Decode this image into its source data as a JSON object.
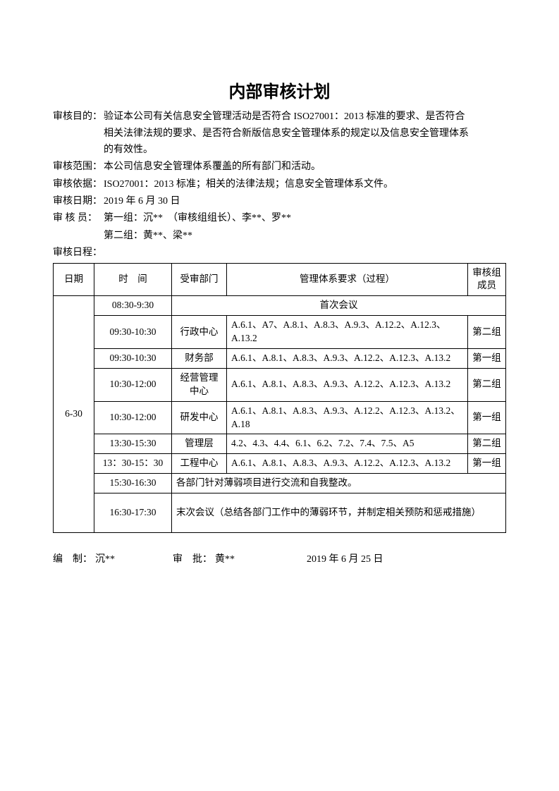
{
  "title": "内部审核计划",
  "labels": {
    "purpose": "审核目的：",
    "scope": "审核范围：",
    "basis": "审核依据：",
    "date": "审核日期：",
    "auditors": "审 核 员：",
    "schedule": "审核日程：",
    "hdr_date": "日期",
    "hdr_time": "时　间",
    "hdr_dept": "受审部门",
    "hdr_req": "管理体系要求（过程）",
    "hdr_grp": "审核组成员",
    "foot_prep": "编　制：",
    "foot_appr": "审　批："
  },
  "info": {
    "purpose_l1": "验证本公司有关信息安全管理活动是否符合 ISO27001：2013 标准的要求、是否符合",
    "purpose_l2": "相关法律法规的要求、是否符合新版信息安全管理体系的规定以及信息安全管理体系",
    "purpose_l3": "的有效性。",
    "scope": "本公司信息安全管理体系覆盖的所有部门和活动。",
    "basis": "ISO27001：2013 标准；相关的法律法规；信息安全管理体系文件。",
    "date": "2019 年 6 月 30 日",
    "auditors_l1": "第一组：沉**　（审核组组长）、李**、罗**",
    "auditors_l2": "第二组：黄**、梁**"
  },
  "table": {
    "date": "6-30",
    "rows": [
      {
        "time": "08:30-9:30",
        "dept": "",
        "req": "首次会议",
        "grp": "",
        "colspan": 3,
        "align": "center"
      },
      {
        "time": "09:30-10:30",
        "dept": "行政中心",
        "req": "A.6.1、A7、A.8.1、A.8.3、A.9.3、A.12.2、A.12.3、A.13.2",
        "grp": "第二组"
      },
      {
        "time": "09:30-10:30",
        "dept": "财务部",
        "req": "A.6.1、A.8.1、A.8.3、A.9.3、A.12.2、A.12.3、A.13.2",
        "grp": "第一组"
      },
      {
        "time": "10:30-12:00",
        "dept": "经营管理中心",
        "req": "A.6.1、A.8.1、A.8.3、A.9.3、A.12.2、A.12.3、A.13.2",
        "grp": "第二组"
      },
      {
        "time": "10:30-12:00",
        "dept": "研发中心",
        "req": "A.6.1、A.8.1、A.8.3、A.9.3、A.12.2、A.12.3、A.13.2、A.18",
        "grp": "第一组"
      },
      {
        "time": "13:30-15:30",
        "dept": "管理层",
        "req": "4.2、4.3、4.4、6.1、6.2、7.2、7.4、7.5、A5",
        "grp": "第二组"
      },
      {
        "time": "13：30-15：30",
        "dept": "工程中心",
        "req": "A.6.1、A.8.1、A.8.3、A.9.3、A.12.2、A.12.3、A.13.2",
        "grp": "第一组"
      },
      {
        "time": "15:30-16:30",
        "dept": "",
        "req": "各部门针对薄弱项目进行交流和自我整改。",
        "grp": "",
        "colspan": 3,
        "align": "left"
      },
      {
        "time": "16:30-17:30",
        "dept": "",
        "req": "末次会议（总结各部门工作中的薄弱环节，并制定相关预防和惩戒措施）",
        "grp": "",
        "colspan": 3,
        "align": "left",
        "pad": "18px 6px"
      }
    ]
  },
  "footer": {
    "prep": "沉**",
    "appr": "黄**",
    "date": "2019 年 6 月 25 日"
  }
}
